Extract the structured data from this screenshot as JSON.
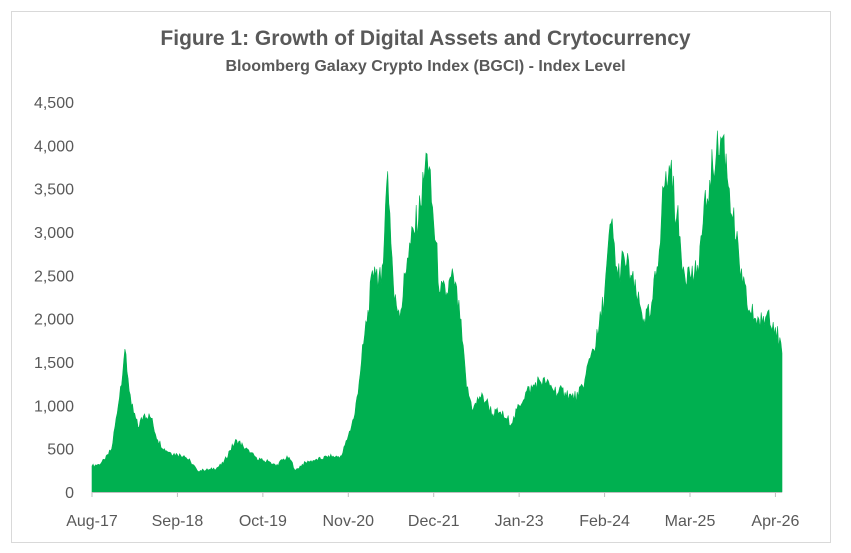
{
  "chart_data": {
    "type": "area",
    "title": "Figure 1: Growth of Digital Assets and Crytocurrency",
    "subtitle": "Bloomberg Galaxy Crypto Index (BGCI) - Index Level",
    "xlabel": "",
    "ylabel": "",
    "x_ticks": [
      "Aug-17",
      "Sep-18",
      "Oct-19",
      "Nov-20",
      "Dec-21",
      "Jan-23",
      "Feb-24",
      "Mar-25",
      "Apr-26"
    ],
    "y_ticks": [
      "0",
      "500",
      "1,000",
      "1,500",
      "2,000",
      "2,500",
      "3,000",
      "3,500",
      "4,000",
      "4,500"
    ],
    "ylim": [
      0,
      4500
    ],
    "x_range": [
      "2017-08",
      "2026-05"
    ],
    "grid": false,
    "legend": "none",
    "colors": {
      "area": "#00b050",
      "text": "#595959",
      "axis": "#bfbfbf"
    },
    "series": [
      {
        "x": [
          "2017-08",
          "2017-09",
          "2017-10",
          "2017-11",
          "2017-12",
          "2018-01",
          "2018-02",
          "2018-03",
          "2018-04",
          "2018-05",
          "2018-06",
          "2018-07",
          "2018-08",
          "2018-09",
          "2018-10",
          "2018-11",
          "2018-12",
          "2019-01",
          "2019-02",
          "2019-03",
          "2019-04",
          "2019-05",
          "2019-06",
          "2019-07",
          "2019-08",
          "2019-09",
          "2019-10",
          "2019-11",
          "2019-12",
          "2020-01",
          "2020-02",
          "2020-03",
          "2020-04",
          "2020-05",
          "2020-06",
          "2020-07",
          "2020-08",
          "2020-09",
          "2020-10",
          "2020-11",
          "2020-12",
          "2021-01",
          "2021-02",
          "2021-03",
          "2021-04",
          "2021-05",
          "2021-06",
          "2021-07",
          "2021-08",
          "2021-09",
          "2021-10",
          "2021-11",
          "2021-12",
          "2022-01",
          "2022-02",
          "2022-03",
          "2022-04",
          "2022-05",
          "2022-06",
          "2022-07",
          "2022-08",
          "2022-09",
          "2022-10",
          "2022-11",
          "2022-12",
          "2023-01",
          "2023-02",
          "2023-03",
          "2023-04",
          "2023-05",
          "2023-06",
          "2023-07",
          "2023-08",
          "2023-09",
          "2023-10",
          "2023-11",
          "2023-12",
          "2024-01",
          "2024-02",
          "2024-03",
          "2024-04",
          "2024-05",
          "2024-06",
          "2024-07",
          "2024-08",
          "2024-09",
          "2024-10",
          "2024-11",
          "2024-12",
          "2025-01",
          "2025-02",
          "2025-03",
          "2025-04",
          "2025-05",
          "2025-06",
          "2025-07",
          "2025-08",
          "2025-09",
          "2025-10",
          "2025-11",
          "2025-12",
          "2026-01",
          "2026-02",
          "2026-03",
          "2026-04",
          "2026-05"
        ],
        "values": [
          300,
          320,
          370,
          500,
          1000,
          1650,
          1000,
          750,
          900,
          850,
          600,
          500,
          450,
          430,
          420,
          350,
          250,
          250,
          260,
          280,
          330,
          480,
          600,
          530,
          450,
          400,
          360,
          350,
          300,
          370,
          400,
          250,
          320,
          350,
          370,
          380,
          420,
          400,
          420,
          650,
          900,
          1500,
          2100,
          2600,
          2400,
          3700,
          2200,
          2100,
          2700,
          3000,
          3300,
          3900,
          3100,
          2300,
          2300,
          2500,
          2000,
          1200,
          950,
          1100,
          1050,
          900,
          920,
          850,
          800,
          1000,
          1150,
          1200,
          1300,
          1250,
          1200,
          1150,
          1150,
          1100,
          1100,
          1300,
          1600,
          1800,
          2300,
          3100,
          2500,
          2700,
          2500,
          2200,
          2000,
          2050,
          2600,
          3500,
          3700,
          3200,
          2600,
          2500,
          2500,
          3100,
          3600,
          3900,
          4100,
          3500,
          2900,
          2400,
          2100,
          2000,
          1950,
          2100,
          1900,
          1600
        ],
        "values_note": ""
      }
    ]
  }
}
